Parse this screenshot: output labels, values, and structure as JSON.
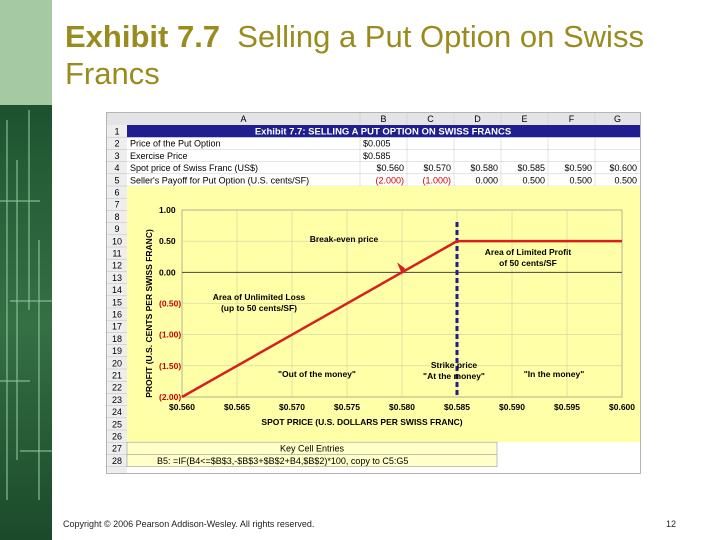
{
  "slide": {
    "title_num": "Exhibit 7.7",
    "title_rest": "Selling a Put Option on Swiss Francs",
    "footer": "Copyright © 2006 Pearson Addison-Wesley. All rights reserved.",
    "page_number": "12"
  },
  "sheet": {
    "columns": [
      "A",
      "B",
      "C",
      "D",
      "E",
      "F",
      "G"
    ],
    "rows": [
      "1",
      "2",
      "3",
      "4",
      "5",
      "6",
      "7",
      "8",
      "9",
      "10",
      "11",
      "12",
      "13",
      "14",
      "15",
      "16",
      "17",
      "18",
      "19",
      "20",
      "21",
      "22",
      "23",
      "24",
      "25",
      "26",
      "27",
      "28"
    ],
    "header": "Exhibit 7.7: SELLING A PUT OPTION ON SWISS FRANCS",
    "row2": {
      "label": "Price of the Put Option",
      "value": "$0.005"
    },
    "row3": {
      "label": "Exercise Price",
      "value": "$0.585"
    },
    "row4": {
      "label": "Spot price of Swiss Franc (US$)",
      "values": [
        "$0.560",
        "$0.570",
        "$0.580",
        "$0.585",
        "$0.590",
        "$0.600"
      ]
    },
    "row5": {
      "label": "Seller's Payoff for Put Option (U.S. cents/SF)",
      "values": [
        "(2.000)",
        "(1.000)",
        "0.000",
        "0.500",
        "0.500",
        "0.500"
      ]
    },
    "key_cells_title": "Key Cell Entries",
    "key_cells_formula": "B5: =IF(B4<=$B$3,-$B$3+$B$2+B4,$B$2)*100, copy to C5:G5",
    "colors": {
      "header_bg": "#1f1f8f",
      "header_text": "#ffffff",
      "chart_bg": "#ffffa8",
      "payoff_line": "#d81e1e",
      "strike_line": "#1f1f8f",
      "negative_text": "#cc0000",
      "key_box_bg": "#ffffc8"
    }
  },
  "chart_data": {
    "type": "line",
    "xlabel": "SPOT PRICE (U.S. DOLLARS PER SWISS FRANC)",
    "ylabel": "PROFIT (U.S. CENTS PER SWISS FRANC)",
    "x_ticks": [
      "$0.560",
      "$0.565",
      "$0.570",
      "$0.575",
      "$0.580",
      "$0.585",
      "$0.590",
      "$0.595",
      "$0.600"
    ],
    "y_ticks": [
      "1.00",
      "0.50",
      "0.00",
      "(0.50)",
      "(1.00)",
      "(1.50)",
      "(2.00)"
    ],
    "xlim": [
      0.56,
      0.6
    ],
    "ylim": [
      -2.0,
      1.0
    ],
    "grid": true,
    "series": [
      {
        "x": [
          0.56,
          0.57,
          0.58,
          0.585,
          0.59,
          0.6
        ],
        "y": [
          -2.0,
          -1.0,
          0.0,
          0.5,
          0.5,
          0.5
        ]
      }
    ],
    "strike": 0.585,
    "annotations": {
      "breakeven": "Break-even price",
      "limited_profit": "Area of Limited Profit\nof 50 cents/SF",
      "unlimited_loss": "Area of Unlimited Loss\n(up to 50 cents/SF)",
      "out_money": "\"Out of the money\"",
      "strike_price": "Strike price\n\"At the money\"",
      "in_money": "\"In the money\""
    }
  }
}
